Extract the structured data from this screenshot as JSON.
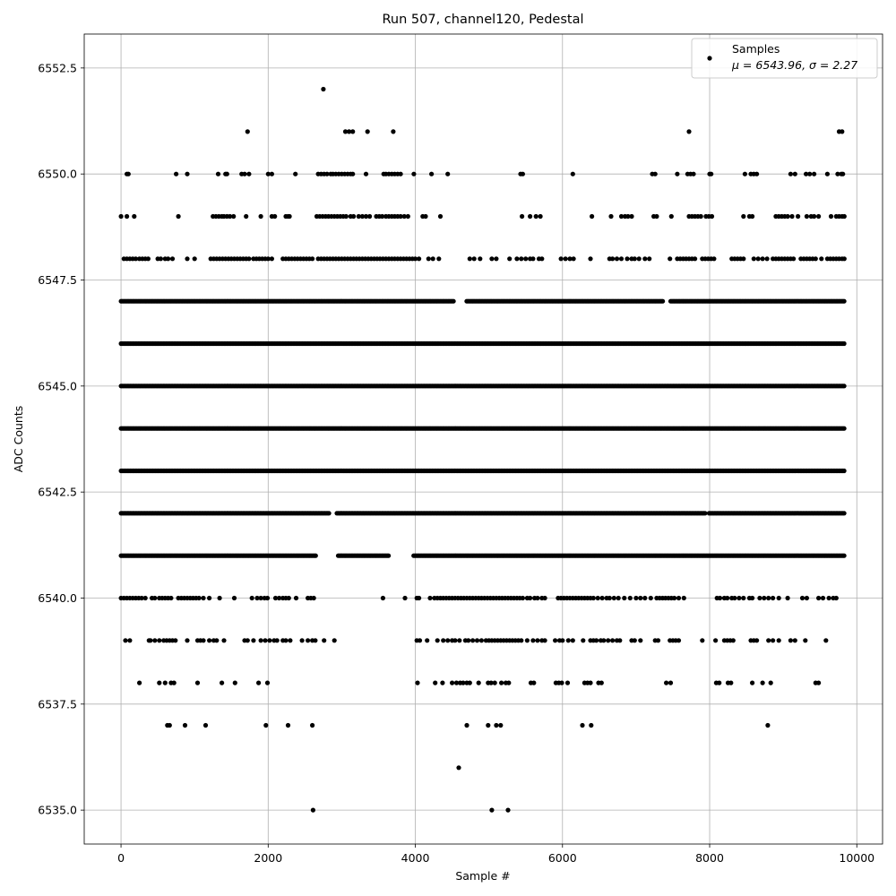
{
  "chart_data": {
    "type": "scatter",
    "title": "Run 507, channel120, Pedestal",
    "xlabel": "Sample #",
    "ylabel": "ADC Counts",
    "xlim": [
      -500,
      10350
    ],
    "ylim": [
      6534.2,
      6553.3
    ],
    "xticks": [
      0,
      2000,
      4000,
      6000,
      8000,
      10000
    ],
    "xtick_labels": [
      "0",
      "2000",
      "4000",
      "6000",
      "8000",
      "10000"
    ],
    "yticks": [
      6535.0,
      6537.5,
      6540.0,
      6542.5,
      6545.0,
      6547.5,
      6550.0,
      6552.5
    ],
    "ytick_labels": [
      "6535.0",
      "6537.5",
      "6540.0",
      "6542.5",
      "6545.0",
      "6547.5",
      "6550.0",
      "6552.5"
    ],
    "grid": true,
    "legend": {
      "position": "top-right",
      "label": "Samples",
      "stats": "μ = 6543.96, σ = 2.27"
    },
    "marker_color": "#000000",
    "series": [
      {
        "name": "Samples",
        "values": [
          {
            "y": 6552,
            "x": [
              2750
            ]
          },
          {
            "y": 6551,
            "x": [
              1720,
              3050,
              3100,
              3150,
              3350,
              3700,
              7720,
              9760,
              9800
            ]
          },
          {
            "y": 6550,
            "x": [
              80,
              100,
              750,
              900,
              1320,
              1420,
              1440,
              1640,
              1680,
              1740,
              2000,
              2050,
              2370,
              2680,
              2720,
              2760,
              2800,
              2850,
              2880,
              2920,
              2960,
              3000,
              3040,
              3080,
              3120,
              3150,
              3330,
              3570,
              3600,
              3640,
              3680,
              3720,
              3760,
              3800,
              3980,
              4220,
              4440,
              5430,
              5460,
              6140,
              7220,
              7260,
              7560,
              7700,
              7740,
              7780,
              8000,
              8020,
              8480,
              8560,
              8600,
              8640,
              9100,
              9160,
              9310,
              9360,
              9420,
              9600,
              9740,
              9790,
              9810
            ]
          },
          {
            "y": 6549,
            "x": [
              0,
              80,
              180,
              780,
              1250,
              1290,
              1330,
              1370,
              1400,
              1440,
              1480,
              1530,
              1700,
              1900,
              2050,
              2090,
              2240,
              2270,
              2290,
              2660,
              2700,
              2740,
              2780,
              2820,
              2860,
              2900,
              2940,
              2980,
              3020,
              3060,
              3120,
              3160,
              3230,
              3280,
              3330,
              3380,
              3470,
              3510,
              3550,
              3600,
              3640,
              3680,
              3720,
              3760,
              3800,
              3850,
              3900,
              4100,
              4140,
              4340,
              5450,
              5560,
              5640,
              5700,
              6400,
              6660,
              6800,
              6850,
              6890,
              6940,
              7240,
              7280,
              7480,
              7720,
              7760,
              7800,
              7840,
              7880,
              7950,
              7990,
              8030,
              8460,
              8540,
              8580,
              8900,
              8940,
              8980,
              9020,
              9060,
              9120,
              9200,
              9320,
              9380,
              9420,
              9480,
              9650,
              9720,
              9760,
              9800,
              9830
            ]
          },
          {
            "y": 6548,
            "x": [
              40,
              80,
              120,
              160,
              200,
              250,
              290,
              330,
              370,
              500,
              540,
              600,
              640,
              700,
              900,
              1000,
              1220,
              1260,
              1300,
              1340,
              1380,
              1420,
              1460,
              1500,
              1540,
              1580,
              1620,
              1660,
              1700,
              1740,
              1800,
              1840,
              1880,
              1920,
              1960,
              2000,
              2050,
              2200,
              2240,
              2280,
              2320,
              2360,
              2400,
              2440,
              2480,
              2520,
              2560,
              2600,
              2680,
              2720,
              2760,
              2800,
              2840,
              2880,
              2920,
              2960,
              3000,
              3040,
              3080,
              3120,
              3160,
              3200,
              3240,
              3280,
              3320,
              3360,
              3400,
              3440,
              3480,
              3520,
              3560,
              3600,
              3640,
              3680,
              3720,
              3760,
              3800,
              3840,
              3880,
              3920,
              3960,
              4000,
              4050,
              4180,
              4240,
              4320,
              4740,
              4800,
              4880,
              5040,
              5100,
              5280,
              5380,
              5440,
              5500,
              5560,
              5600,
              5680,
              5720,
              5980,
              6040,
              6100,
              6150,
              6380,
              6640,
              6680,
              6740,
              6800,
              6880,
              6940,
              6980,
              7040,
              7120,
              7180,
              7460,
              7560,
              7600,
              7640,
              7680,
              7720,
              7760,
              7800,
              7900,
              7940,
              7980,
              8020,
              8060,
              8300,
              8340,
              8380,
              8420,
              8460,
              8600,
              8660,
              8720,
              8780,
              8860,
              8900,
              8940,
              8980,
              9020,
              9060,
              9100,
              9140,
              9240,
              9280,
              9320,
              9360,
              9400,
              9440,
              9520,
              9600,
              9640,
              9680,
              9720,
              9760,
              9800,
              9830
            ]
          }
        ]
      }
    ],
    "dense_levels": {
      "note": "dense rows of samples spanning full x range",
      "rows": [
        {
          "y": 6547,
          "x_range": [
            0,
            9830
          ],
          "gaps": [
            [
              4520,
              4680
            ],
            [
              7380,
              7460
            ]
          ]
        },
        {
          "y": 6546,
          "x_range": [
            0,
            9830
          ],
          "gaps": []
        },
        {
          "y": 6545,
          "x_range": [
            0,
            9830
          ],
          "gaps": []
        },
        {
          "y": 6544,
          "x_range": [
            0,
            9830
          ],
          "gaps": []
        },
        {
          "y": 6543,
          "x_range": [
            0,
            9830
          ],
          "gaps": []
        },
        {
          "y": 6542,
          "x_range": [
            0,
            9830
          ],
          "gaps": [
            [
              2830,
              2920
            ],
            [
              7950,
              7990
            ]
          ]
        },
        {
          "y": 6541,
          "x_range": [
            0,
            9830
          ],
          "gaps": [
            [
              2650,
              2950
            ],
            [
              3650,
              3960
            ]
          ]
        }
      ]
    },
    "sparse_levels": [
      {
        "y": 6540,
        "x": [
          0,
          40,
          80,
          120,
          160,
          200,
          240,
          280,
          330,
          420,
          460,
          520,
          560,
          600,
          640,
          680,
          780,
          820,
          860,
          900,
          940,
          980,
          1020,
          1060,
          1120,
          1200,
          1340,
          1540,
          1780,
          1850,
          1900,
          1950,
          1990,
          2100,
          2150,
          2200,
          2240,
          2280,
          2380,
          2540,
          2580,
          2620,
          3560,
          3860,
          4020,
          4050,
          4200,
          4260,
          4300,
          4340,
          4380,
          4420,
          4460,
          4500,
          4540,
          4580,
          4620,
          4660,
          4700,
          4740,
          4780,
          4820,
          4860,
          4900,
          4940,
          4980,
          5020,
          5060,
          5100,
          5140,
          5180,
          5220,
          5260,
          5300,
          5340,
          5380,
          5420,
          5460,
          5520,
          5560,
          5620,
          5660,
          5720,
          5760,
          5940,
          5980,
          6020,
          6060,
          6100,
          6140,
          6180,
          6220,
          6260,
          6300,
          6340,
          6380,
          6420,
          6480,
          6540,
          6600,
          6640,
          6700,
          6760,
          6840,
          6920,
          7000,
          7060,
          7120,
          7200,
          7280,
          7320,
          7360,
          7400,
          7440,
          7480,
          7520,
          7580,
          7650,
          8100,
          8140,
          8200,
          8240,
          8300,
          8340,
          8400,
          8460,
          8540,
          8580,
          8680,
          8740,
          8800,
          8860,
          8940,
          9060,
          9260,
          9320,
          9480,
          9540,
          9620,
          9680,
          9720
        ]
      },
      {
        "y": 6539,
        "x": [
          60,
          120,
          380,
          400,
          460,
          520,
          580,
          620,
          660,
          700,
          740,
          900,
          1040,
          1080,
          1120,
          1200,
          1260,
          1300,
          1400,
          1680,
          1720,
          1800,
          1900,
          1960,
          2020,
          2080,
          2120,
          2200,
          2240,
          2300,
          2460,
          2540,
          2600,
          2640,
          2760,
          2900,
          4020,
          4060,
          4160,
          4300,
          4380,
          4440,
          4500,
          4540,
          4600,
          4680,
          4720,
          4780,
          4840,
          4900,
          4960,
          5000,
          5040,
          5080,
          5120,
          5160,
          5200,
          5240,
          5280,
          5320,
          5360,
          5400,
          5440,
          5520,
          5600,
          5660,
          5720,
          5760,
          5900,
          5960,
          6000,
          6080,
          6140,
          6280,
          6380,
          6420,
          6460,
          6520,
          6560,
          6620,
          6680,
          6740,
          6780,
          6940,
          6980,
          7060,
          7260,
          7300,
          7460,
          7500,
          7540,
          7580,
          7900,
          8080,
          8200,
          8240,
          8280,
          8320,
          8560,
          8600,
          8640,
          8800,
          8860,
          8940,
          9100,
          9160,
          9300,
          9580
        ]
      },
      {
        "y": 6538,
        "x": [
          250,
          520,
          600,
          680,
          720,
          1040,
          1370,
          1550,
          1870,
          1990,
          4030,
          4270,
          4370,
          4500,
          4560,
          4610,
          4650,
          4700,
          4740,
          4860,
          4990,
          5030,
          5080,
          5170,
          5230,
          5270,
          5570,
          5610,
          5910,
          5950,
          5990,
          6070,
          6300,
          6340,
          6380,
          6490,
          6530,
          7410,
          7470,
          8090,
          8130,
          8250,
          8290,
          8580,
          8720,
          8830,
          9440,
          9480
        ]
      },
      {
        "y": 6537,
        "x": [
          630,
          660,
          870,
          1150,
          1970,
          2270,
          2600,
          4700,
          4990,
          5100,
          5160,
          6270,
          6390,
          8790
        ]
      },
      {
        "y": 6536,
        "x": [
          4590
        ]
      },
      {
        "y": 6535,
        "x": [
          2610,
          5040,
          5260
        ]
      }
    ]
  }
}
